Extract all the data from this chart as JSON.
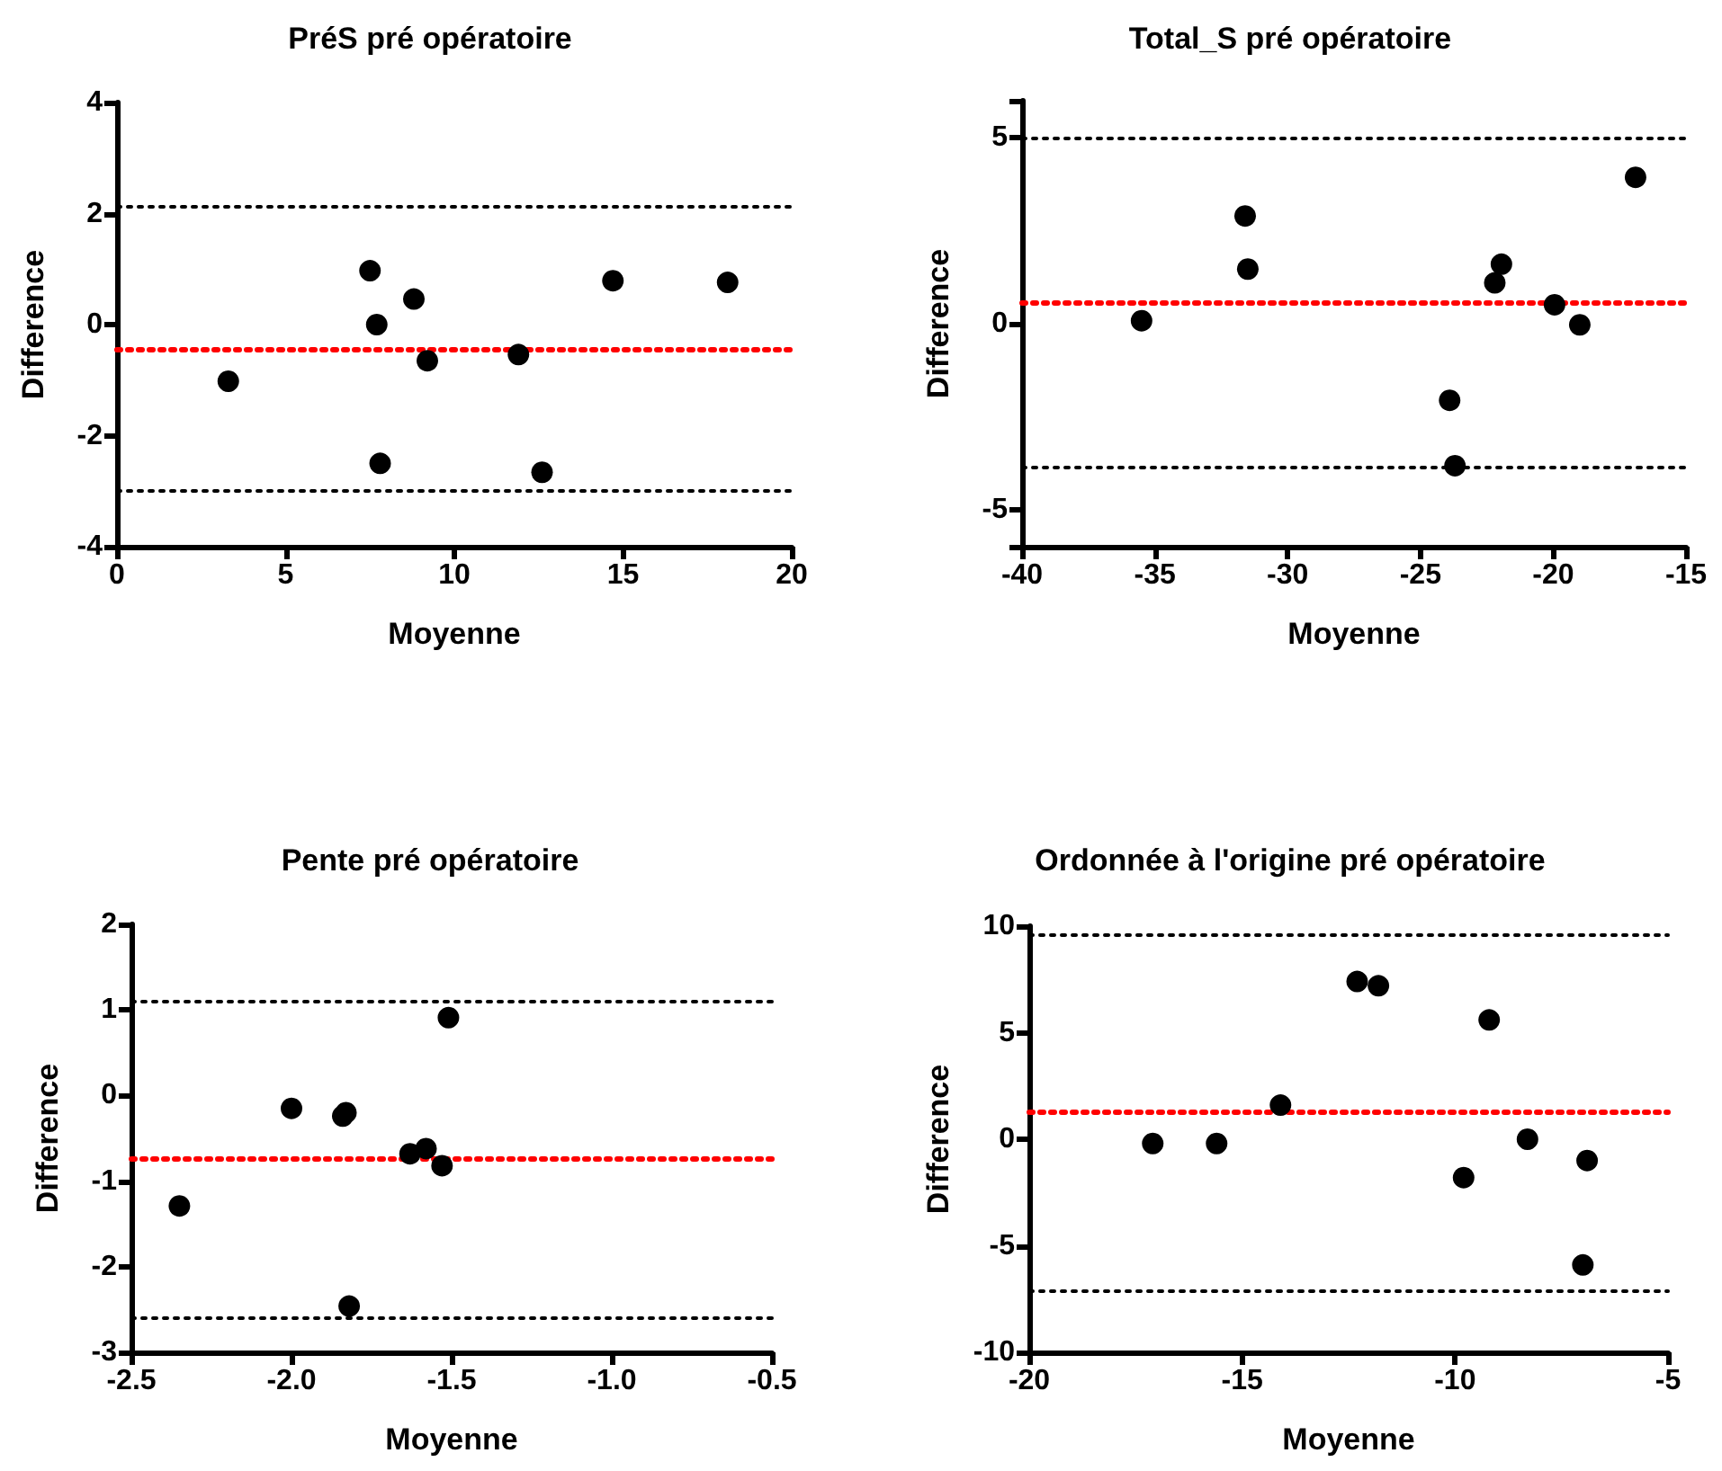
{
  "chart_data": [
    {
      "type": "scatter",
      "title": "PréS pré opératoire",
      "xlabel": "Moyenne",
      "ylabel": "Difference",
      "xlim": [
        0,
        20
      ],
      "xticks": [
        0,
        5,
        10,
        15,
        20
      ],
      "ylim": [
        -4,
        4
      ],
      "yticks": [
        -4,
        -2,
        0,
        2,
        4
      ],
      "marker": "circle",
      "series": [
        {
          "color": "#000000",
          "x": [
            7.5,
            7.7,
            8.8,
            9.2,
            3.3,
            11.9,
            7.8,
            12.6,
            14.7,
            18.1
          ],
          "values": [
            0.97,
            0.0,
            0.46,
            -0.65,
            -1.02,
            -0.54,
            -2.5,
            -2.66,
            0.79,
            0.76
          ]
        }
      ],
      "ref_lines": [
        {
          "axis": "y",
          "value": 2.13,
          "color": "#000000",
          "line_style": "dotted"
        },
        {
          "axis": "y",
          "value": -0.44,
          "color": "#ff0000",
          "line_style": "dotted"
        },
        {
          "axis": "y",
          "value": -3.0,
          "color": "#000000",
          "line_style": "dotted"
        }
      ]
    },
    {
      "type": "scatter",
      "title": "Total_S pré opératoire",
      "xlabel": "Moyenne",
      "ylabel": "Difference",
      "xlim": [
        -40,
        -15
      ],
      "xticks": [
        -40,
        -35,
        -30,
        -25,
        -20,
        -15
      ],
      "ylim": [
        -6,
        6
      ],
      "yticks": [
        {
          "value": -6,
          "label": null
        },
        -5,
        0,
        5,
        {
          "value": 6,
          "label": null
        }
      ],
      "marker": "circle",
      "series": [
        {
          "color": "#000000",
          "x": [
            -35.5,
            -31.6,
            -31.5,
            -23.9,
            -23.7,
            -22.2,
            -21.95,
            -19.95,
            -19.0,
            -16.9
          ],
          "values": [
            0.08,
            2.9,
            1.47,
            -2.06,
            -3.82,
            1.1,
            1.6,
            0.51,
            -0.03,
            3.94
          ]
        }
      ],
      "ref_lines": [
        {
          "axis": "y",
          "value": 5.0,
          "color": "#000000",
          "line_style": "dotted"
        },
        {
          "axis": "y",
          "value": 0.59,
          "color": "#ff0000",
          "line_style": "dotted"
        },
        {
          "axis": "y",
          "value": -3.84,
          "color": "#000000",
          "line_style": "dotted"
        }
      ]
    },
    {
      "type": "scatter",
      "title": "Pente pré opératoire",
      "xlabel": "Moyenne",
      "ylabel": "Difference",
      "xlim": [
        -2.5,
        -0.5
      ],
      "xticks": [
        {
          "value": -2.5,
          "label": "-2.5"
        },
        {
          "value": -2.0,
          "label": "-2.0"
        },
        {
          "value": -1.5,
          "label": "-1.5"
        },
        {
          "value": -1.0,
          "label": "-1.0"
        },
        {
          "value": -0.5,
          "label": "-0.5"
        }
      ],
      "ylim": [
        -3,
        2
      ],
      "yticks": [
        -3,
        -2,
        -1,
        0,
        1,
        2
      ],
      "marker": "circle",
      "series": [
        {
          "color": "#000000",
          "x": [
            -2.35,
            -2.0,
            -1.84,
            -1.83,
            -1.63,
            -1.58,
            -1.53,
            -1.51,
            -1.82
          ],
          "values": [
            -1.29,
            -0.15,
            -0.24,
            -0.2,
            -0.68,
            -0.62,
            -0.82,
            0.91,
            -2.46
          ]
        }
      ],
      "ref_lines": [
        {
          "axis": "y",
          "value": 1.11,
          "color": "#000000",
          "line_style": "dotted"
        },
        {
          "axis": "y",
          "value": -0.73,
          "color": "#ff0000",
          "line_style": "dotted"
        },
        {
          "axis": "y",
          "value": -2.59,
          "color": "#000000",
          "line_style": "dotted"
        }
      ]
    },
    {
      "type": "scatter",
      "title": "Ordonnée à l'origine pré opératoire",
      "xlabel": "Moyenne",
      "ylabel": "Difference",
      "xlim": [
        -20,
        -5
      ],
      "xticks": [
        -20,
        -15,
        -10,
        -5
      ],
      "ylim": [
        -10,
        10
      ],
      "yticks": [
        -10,
        -5,
        0,
        5,
        10
      ],
      "marker": "circle",
      "series": [
        {
          "color": "#000000",
          "x": [
            -17.1,
            -15.6,
            -14.1,
            -12.3,
            -11.8,
            -9.8,
            -9.2,
            -8.3,
            -6.9,
            -7.0
          ],
          "values": [
            -0.2,
            -0.2,
            1.6,
            7.4,
            7.2,
            -1.8,
            5.6,
            0.0,
            -1.0,
            -5.9
          ]
        }
      ],
      "ref_lines": [
        {
          "axis": "y",
          "value": 9.6,
          "color": "#000000",
          "line_style": "dotted"
        },
        {
          "axis": "y",
          "value": 1.3,
          "color": "#ff0000",
          "line_style": "dotted"
        },
        {
          "axis": "y",
          "value": -7.1,
          "color": "#000000",
          "line_style": "dotted"
        }
      ]
    }
  ]
}
